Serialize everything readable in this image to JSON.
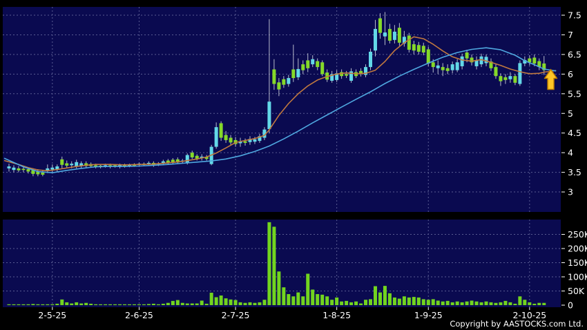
{
  "chart_data": {
    "type": "candlestick",
    "title": "",
    "legend_position": "none",
    "grid": true,
    "price_axis": {
      "side": "right",
      "tick_labels": [
        "7.5",
        "7",
        "6.5",
        "6",
        "5.5",
        "5",
        "4.5",
        "4",
        "3.5",
        "3"
      ],
      "tick_values": [
        7.5,
        7,
        6.5,
        6,
        5.5,
        5,
        4.5,
        4,
        3.5,
        3
      ],
      "visible_range": [
        2.5,
        7.7
      ]
    },
    "volume_axis": {
      "side": "right",
      "tick_labels": [
        "250K",
        "200K",
        "150K",
        "100K",
        "50K",
        "0"
      ],
      "tick_values_k": [
        250,
        200,
        150,
        100,
        50,
        0
      ]
    },
    "date_ticks": [
      {
        "label": "2-5-25",
        "index": 9
      },
      {
        "label": "2-6-25",
        "index": 27
      },
      {
        "label": "2-7-25",
        "index": 47
      },
      {
        "label": "1-8-25",
        "index": 68
      },
      {
        "label": "1-9-25",
        "index": 87
      },
      {
        "label": "2-10-25",
        "index": 108
      }
    ],
    "candle_legend": {
      "u": "up day (cyan)",
      "d": "down day (green)"
    },
    "candles": [
      [
        3.6,
        3.65,
        3.52,
        3.72,
        "u",
        3
      ],
      [
        3.56,
        3.62,
        3.5,
        3.68,
        "u",
        2
      ],
      [
        3.55,
        3.6,
        3.5,
        3.66,
        "d",
        2
      ],
      [
        3.56,
        3.59,
        3.5,
        3.65,
        "d",
        2
      ],
      [
        3.52,
        3.58,
        3.47,
        3.62,
        "d",
        3
      ],
      [
        3.46,
        3.56,
        3.4,
        3.6,
        "d",
        4
      ],
      [
        3.45,
        3.52,
        3.4,
        3.58,
        "d",
        3
      ],
      [
        3.44,
        3.49,
        3.4,
        3.55,
        "d",
        2
      ],
      [
        3.55,
        3.6,
        3.48,
        3.7,
        "u",
        3
      ],
      [
        3.57,
        3.62,
        3.5,
        3.7,
        "u",
        3
      ],
      [
        3.57,
        3.65,
        3.52,
        3.7,
        "u",
        5
      ],
      [
        3.69,
        3.83,
        3.6,
        3.9,
        "d",
        20
      ],
      [
        3.67,
        3.73,
        3.6,
        3.8,
        "d",
        10
      ],
      [
        3.68,
        3.72,
        3.6,
        3.78,
        "u",
        6
      ],
      [
        3.64,
        3.76,
        3.6,
        3.82,
        "u",
        10
      ],
      [
        3.66,
        3.73,
        3.6,
        3.78,
        "u",
        6
      ],
      [
        3.66,
        3.73,
        3.6,
        3.78,
        "d",
        8
      ],
      [
        3.66,
        3.71,
        3.62,
        3.75,
        "d",
        5
      ],
      [
        3.65,
        3.68,
        3.6,
        3.72,
        "d",
        3
      ],
      [
        3.64,
        3.67,
        3.6,
        3.7,
        "d",
        2
      ],
      [
        3.65,
        3.68,
        3.62,
        3.72,
        "u",
        2
      ],
      [
        3.65,
        3.68,
        3.6,
        3.72,
        "d",
        2
      ],
      [
        3.65,
        3.68,
        3.62,
        3.7,
        "d",
        2
      ],
      [
        3.64,
        3.68,
        3.6,
        3.72,
        "u",
        3
      ],
      [
        3.66,
        3.69,
        3.62,
        3.72,
        "d",
        2
      ],
      [
        3.66,
        3.69,
        3.63,
        3.72,
        "u",
        2
      ],
      [
        3.67,
        3.7,
        3.64,
        3.73,
        "d",
        2
      ],
      [
        3.69,
        3.72,
        3.65,
        3.75,
        "u",
        3
      ],
      [
        3.69,
        3.72,
        3.66,
        3.75,
        "d",
        2
      ],
      [
        3.7,
        3.74,
        3.66,
        3.78,
        "u",
        4
      ],
      [
        3.68,
        3.74,
        3.64,
        3.78,
        "d",
        5
      ],
      [
        3.7,
        3.73,
        3.66,
        3.76,
        "u",
        3
      ],
      [
        3.72,
        3.78,
        3.68,
        3.82,
        "u",
        5
      ],
      [
        3.73,
        3.8,
        3.7,
        3.84,
        "d",
        8
      ],
      [
        3.74,
        3.82,
        3.7,
        3.86,
        "d",
        15
      ],
      [
        3.75,
        3.83,
        3.72,
        3.88,
        "d",
        18
      ],
      [
        3.77,
        3.8,
        3.73,
        3.84,
        "u",
        8
      ],
      [
        3.74,
        3.94,
        3.7,
        3.98,
        "u",
        6
      ],
      [
        3.88,
        4.0,
        3.84,
        4.05,
        "d",
        6
      ],
      [
        3.85,
        3.92,
        3.8,
        3.96,
        "d",
        6
      ],
      [
        3.86,
        3.9,
        3.8,
        3.96,
        "u",
        16
      ],
      [
        3.84,
        3.89,
        3.8,
        3.94,
        "d",
        5
      ],
      [
        3.71,
        4.15,
        3.68,
        4.2,
        "u",
        44
      ],
      [
        4.15,
        4.65,
        4.1,
        4.77,
        "u",
        28
      ],
      [
        4.38,
        4.75,
        4.3,
        4.8,
        "d",
        34
      ],
      [
        4.32,
        4.45,
        4.25,
        4.55,
        "d",
        24
      ],
      [
        4.26,
        4.38,
        4.2,
        4.45,
        "d",
        20
      ],
      [
        4.22,
        4.32,
        4.15,
        4.4,
        "d",
        18
      ],
      [
        4.24,
        4.28,
        4.15,
        4.38,
        "u",
        10
      ],
      [
        4.25,
        4.29,
        4.18,
        4.36,
        "d",
        8
      ],
      [
        4.27,
        4.35,
        4.2,
        4.42,
        "u",
        10
      ],
      [
        4.28,
        4.34,
        4.22,
        4.4,
        "u",
        8
      ],
      [
        4.3,
        4.42,
        4.25,
        4.48,
        "u",
        10
      ],
      [
        4.38,
        4.59,
        4.32,
        4.65,
        "u",
        19
      ],
      [
        4.6,
        5.3,
        4.5,
        7.4,
        "u",
        293
      ],
      [
        5.75,
        6.12,
        5.6,
        6.38,
        "d",
        277
      ],
      [
        5.61,
        5.79,
        5.44,
        5.9,
        "d",
        119
      ],
      [
        5.73,
        5.87,
        5.65,
        5.95,
        "d",
        63
      ],
      [
        5.75,
        5.9,
        5.68,
        5.98,
        "u",
        39
      ],
      [
        5.9,
        6.12,
        5.8,
        6.75,
        "d",
        31
      ],
      [
        5.92,
        6.13,
        5.85,
        6.4,
        "u",
        45
      ],
      [
        6.1,
        6.25,
        6.0,
        6.35,
        "d",
        31
      ],
      [
        6.15,
        6.35,
        6.05,
        6.53,
        "d",
        111
      ],
      [
        6.25,
        6.38,
        6.18,
        6.48,
        "u",
        55
      ],
      [
        6.18,
        6.33,
        6.1,
        6.4,
        "d",
        39
      ],
      [
        6.0,
        6.3,
        5.95,
        6.35,
        "d",
        37
      ],
      [
        5.86,
        6.04,
        5.8,
        6.12,
        "d",
        31
      ],
      [
        5.83,
        6.0,
        5.78,
        6.08,
        "u",
        19
      ],
      [
        5.85,
        6.02,
        5.8,
        6.1,
        "u",
        27
      ],
      [
        5.95,
        6.05,
        5.88,
        6.12,
        "d",
        13
      ],
      [
        5.96,
        6.0,
        5.9,
        6.08,
        "d",
        15
      ],
      [
        5.83,
        6.07,
        5.78,
        6.15,
        "u",
        10
      ],
      [
        5.95,
        6.05,
        5.9,
        6.12,
        "d",
        13
      ],
      [
        6.0,
        6.08,
        5.94,
        6.15,
        "d",
        6
      ],
      [
        5.98,
        6.18,
        5.92,
        6.25,
        "u",
        19
      ],
      [
        6.18,
        6.57,
        6.1,
        6.65,
        "u",
        21
      ],
      [
        6.6,
        7.15,
        6.45,
        7.38,
        "u",
        67
      ],
      [
        7.05,
        7.42,
        6.9,
        7.55,
        "d",
        45
      ],
      [
        6.96,
        7.06,
        6.74,
        7.58,
        "u",
        68
      ],
      [
        6.85,
        7.15,
        6.78,
        7.28,
        "d",
        42
      ],
      [
        6.87,
        7.08,
        6.78,
        7.25,
        "u",
        27
      ],
      [
        6.8,
        7.18,
        6.72,
        7.3,
        "d",
        23
      ],
      [
        6.78,
        6.95,
        6.7,
        7.1,
        "u",
        31
      ],
      [
        6.62,
        6.98,
        6.55,
        7.05,
        "d",
        27
      ],
      [
        6.6,
        6.76,
        6.5,
        6.85,
        "d",
        29
      ],
      [
        6.57,
        6.74,
        6.5,
        6.82,
        "d",
        27
      ],
      [
        6.55,
        6.72,
        6.48,
        6.8,
        "d",
        21
      ],
      [
        6.27,
        6.63,
        6.2,
        6.7,
        "d",
        19
      ],
      [
        6.18,
        6.3,
        6.04,
        6.38,
        "d",
        21
      ],
      [
        6.15,
        6.22,
        6.0,
        6.35,
        "u",
        16
      ],
      [
        6.1,
        6.18,
        5.95,
        6.28,
        "d",
        13
      ],
      [
        6.08,
        6.15,
        6.0,
        6.25,
        "d",
        15
      ],
      [
        6.1,
        6.25,
        6.02,
        6.32,
        "u",
        10
      ],
      [
        6.1,
        6.3,
        6.05,
        6.38,
        "u",
        13
      ],
      [
        6.2,
        6.45,
        6.12,
        6.52,
        "u",
        10
      ],
      [
        6.4,
        6.55,
        6.3,
        6.62,
        "d",
        13
      ],
      [
        6.3,
        6.42,
        6.22,
        6.5,
        "d",
        16
      ],
      [
        6.2,
        6.35,
        6.12,
        6.45,
        "u",
        13
      ],
      [
        6.25,
        6.45,
        6.18,
        6.52,
        "u",
        10
      ],
      [
        6.28,
        6.44,
        6.2,
        6.5,
        "u",
        13
      ],
      [
        6.15,
        6.32,
        6.08,
        6.4,
        "d",
        10
      ],
      [
        5.95,
        6.18,
        5.88,
        6.25,
        "d",
        8
      ],
      [
        5.82,
        5.95,
        5.7,
        6.02,
        "d",
        10
      ],
      [
        5.85,
        5.92,
        5.75,
        6.0,
        "d",
        15
      ],
      [
        5.87,
        5.95,
        5.78,
        6.05,
        "u",
        10
      ],
      [
        5.78,
        5.95,
        5.72,
        6.0,
        "d",
        5
      ],
      [
        5.75,
        6.28,
        5.7,
        6.35,
        "u",
        31
      ],
      [
        6.27,
        6.36,
        6.2,
        6.45,
        "u",
        19
      ],
      [
        6.3,
        6.4,
        6.22,
        6.48,
        "d",
        10
      ],
      [
        6.27,
        6.42,
        6.2,
        6.5,
        "d",
        5
      ],
      [
        6.18,
        6.33,
        6.1,
        6.4,
        "d",
        8
      ],
      [
        6.1,
        6.27,
        5.98,
        6.46,
        "d",
        8
      ]
    ],
    "moving_averages": [
      {
        "name": "ma-fast-orange",
        "color": "#c1793f",
        "points": [
          [
            -1,
            3.8
          ],
          [
            2,
            3.7
          ],
          [
            4,
            3.62
          ],
          [
            6,
            3.56
          ],
          [
            8,
            3.54
          ],
          [
            10,
            3.57
          ],
          [
            12,
            3.61
          ],
          [
            14,
            3.65
          ],
          [
            16,
            3.68
          ],
          [
            18,
            3.7
          ],
          [
            21,
            3.7
          ],
          [
            24,
            3.69
          ],
          [
            27,
            3.7
          ],
          [
            30,
            3.71
          ],
          [
            33,
            3.74
          ],
          [
            36,
            3.78
          ],
          [
            39,
            3.84
          ],
          [
            41,
            3.89
          ],
          [
            43,
            3.99
          ],
          [
            45,
            4.12
          ],
          [
            47,
            4.26
          ],
          [
            49,
            4.31
          ],
          [
            51,
            4.36
          ],
          [
            53,
            4.44
          ],
          [
            54,
            4.58
          ],
          [
            56,
            4.95
          ],
          [
            58,
            5.25
          ],
          [
            60,
            5.5
          ],
          [
            62,
            5.7
          ],
          [
            64,
            5.85
          ],
          [
            66,
            5.94
          ],
          [
            68,
            6.0
          ],
          [
            70,
            6.03
          ],
          [
            72,
            6.01
          ],
          [
            74,
            6.02
          ],
          [
            76,
            6.1
          ],
          [
            78,
            6.32
          ],
          [
            80,
            6.6
          ],
          [
            82,
            6.8
          ],
          [
            84,
            6.95
          ],
          [
            86,
            6.9
          ],
          [
            88,
            6.76
          ],
          [
            90,
            6.59
          ],
          [
            92,
            6.44
          ],
          [
            94,
            6.36
          ],
          [
            96,
            6.33
          ],
          [
            98,
            6.37
          ],
          [
            100,
            6.3
          ],
          [
            102,
            6.22
          ],
          [
            104,
            6.13
          ],
          [
            106,
            6.06
          ],
          [
            108,
            6.01
          ],
          [
            110,
            6.02
          ],
          [
            111,
            6.05
          ],
          [
            113.5,
            6.09
          ]
        ]
      },
      {
        "name": "ma-slow-blue",
        "color": "#4fa8e0",
        "points": [
          [
            -1,
            3.86
          ],
          [
            3,
            3.64
          ],
          [
            6,
            3.52
          ],
          [
            9,
            3.49
          ],
          [
            12,
            3.55
          ],
          [
            15,
            3.6
          ],
          [
            18,
            3.64
          ],
          [
            21,
            3.65
          ],
          [
            24,
            3.65
          ],
          [
            27,
            3.66
          ],
          [
            30,
            3.68
          ],
          [
            33,
            3.7
          ],
          [
            36,
            3.73
          ],
          [
            39,
            3.76
          ],
          [
            42,
            3.79
          ],
          [
            45,
            3.84
          ],
          [
            48,
            3.92
          ],
          [
            51,
            4.03
          ],
          [
            54,
            4.17
          ],
          [
            57,
            4.35
          ],
          [
            60,
            4.55
          ],
          [
            63,
            4.76
          ],
          [
            66,
            4.96
          ],
          [
            69,
            5.16
          ],
          [
            72,
            5.36
          ],
          [
            75,
            5.55
          ],
          [
            78,
            5.76
          ],
          [
            81,
            5.95
          ],
          [
            84,
            6.12
          ],
          [
            87,
            6.28
          ],
          [
            90,
            6.43
          ],
          [
            93,
            6.55
          ],
          [
            96,
            6.63
          ],
          [
            99,
            6.67
          ],
          [
            102,
            6.62
          ],
          [
            105,
            6.48
          ],
          [
            107,
            6.34
          ],
          [
            109,
            6.24
          ],
          [
            111,
            6.13
          ],
          [
            113.5,
            6.08
          ]
        ]
      }
    ],
    "marker": {
      "type": "up-arrow",
      "at_index": 112.4,
      "tip_price": 6.12,
      "meaning": "latest price up indicator"
    }
  },
  "footer": {
    "copyright": "Copyright by AASTOCKS.com Ltd."
  },
  "colors": {
    "background": "#000000",
    "panel": "#0a0a50",
    "grid": "#9aa0c8",
    "up_candle": "#63d8e8",
    "down_candle": "#85d929",
    "wick": "#b8bccc",
    "volume_bar": "#72d41f",
    "ma_fast": "#c1793f",
    "ma_slow": "#4fa8e0",
    "axis_text": "#ffffff",
    "arrow_fill": "#ffc627",
    "arrow_border": "#bd7c00"
  }
}
